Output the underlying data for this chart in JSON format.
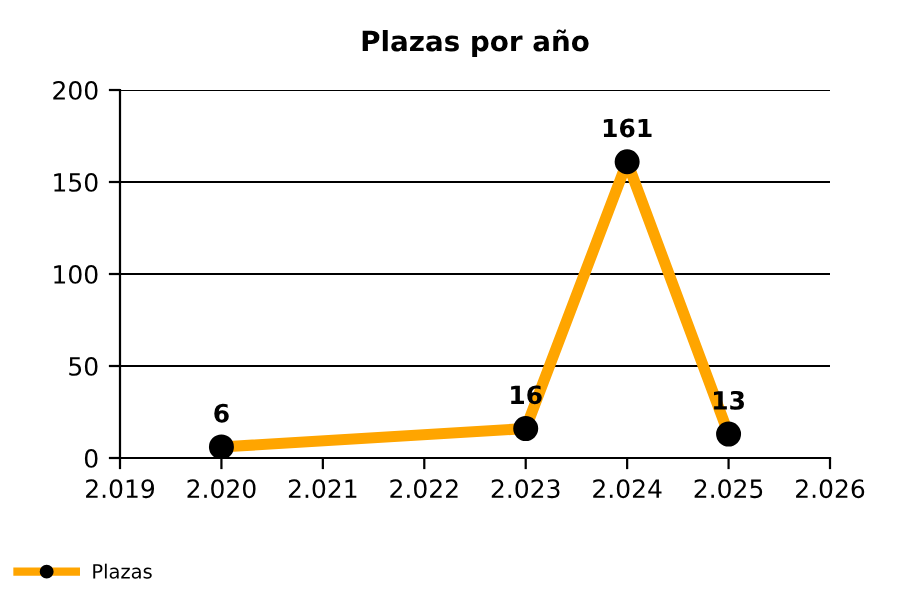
{
  "chart_data": {
    "type": "line",
    "title": "Plazas por año",
    "x": [
      2020,
      2023,
      2024,
      2025
    ],
    "series": [
      {
        "name": "Plazas",
        "color": "#ffa500",
        "values": [
          6,
          16,
          161,
          13
        ]
      }
    ],
    "xlim": [
      2019,
      2026
    ],
    "xticks": [
      {
        "value": 2019,
        "label": "2.019"
      },
      {
        "value": 2020,
        "label": "2.020"
      },
      {
        "value": 2021,
        "label": "2.021"
      },
      {
        "value": 2022,
        "label": "2.022"
      },
      {
        "value": 2023,
        "label": "2.023"
      },
      {
        "value": 2024,
        "label": "2.024"
      },
      {
        "value": 2025,
        "label": "2.025"
      },
      {
        "value": 2026,
        "label": "2.026"
      }
    ],
    "ylim": [
      0,
      200
    ],
    "yticks": [
      0,
      50,
      100,
      150,
      200
    ],
    "grid": "y",
    "legend": "bottom left",
    "marker": "circle",
    "line_style": "solid",
    "data_labels": true
  }
}
